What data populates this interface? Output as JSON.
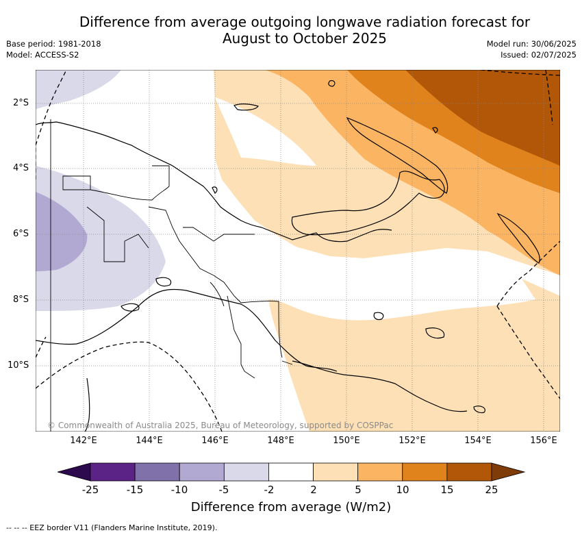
{
  "title_line1": "Difference from average outgoing longwave radiation forecast for",
  "title_line2": "August to October 2025",
  "meta_left": [
    "Base period: 1981-2018",
    "Model: ACCESS-S2"
  ],
  "meta_right": [
    "Model run: 30/06/2025",
    "Issued: 02/07/2025"
  ],
  "lat_labels": [
    "2°S",
    "4°S",
    "6°S",
    "8°S",
    "10°S"
  ],
  "lon_labels": [
    "142°E",
    "144°E",
    "146°E",
    "148°E",
    "150°E",
    "152°E",
    "154°E",
    "156°E"
  ],
  "copyright": "© Commonwealth of Australia 2025, Bureau of Meteorology, supported by COSPPac",
  "colorbar": {
    "ticks": [
      "-25",
      "-15",
      "-10",
      "-5",
      "-2",
      "2",
      "5",
      "10",
      "15",
      "25"
    ],
    "colors": [
      "#5a2385",
      "#8071ab",
      "#b1a9d2",
      "#d9d9ea",
      "#ffffff",
      "#fde0b5",
      "#fbb462",
      "#e0831d",
      "#b15707"
    ],
    "under_color": "#2d0a4d",
    "over_color": "#7f3b08",
    "label": "Difference from average (W/m2)"
  },
  "legend_footer": "-- -- -- EEZ border V11 (Flanders Marine Institute, 2019)."
}
